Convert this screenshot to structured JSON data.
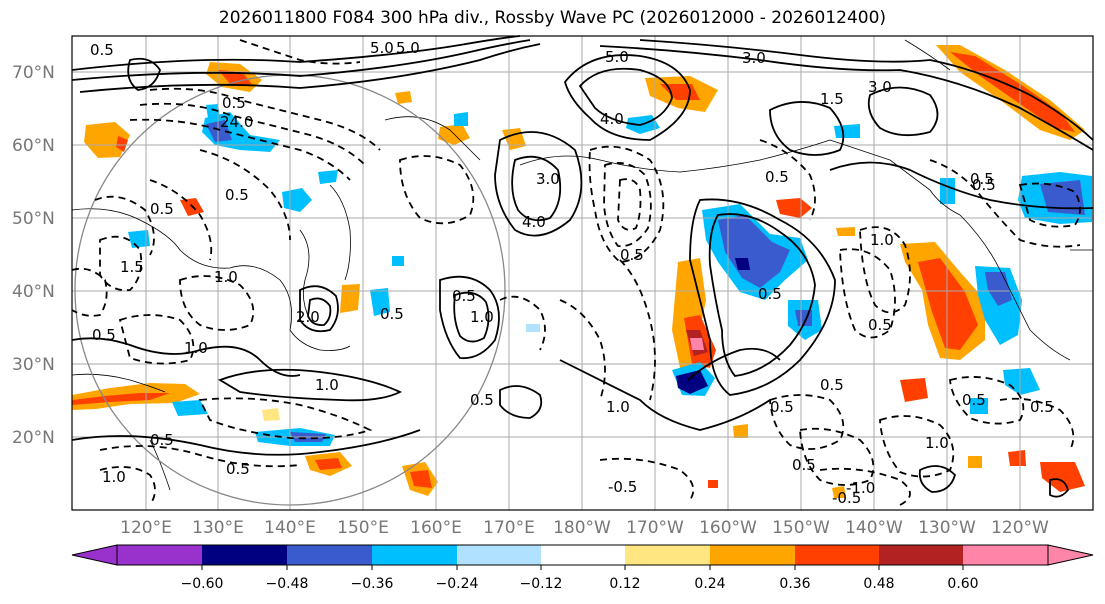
{
  "title": "2026011800 F084 300 hPa div., Rossby Wave PC (2026012000 - 2026012400)",
  "latitude_labels": [
    "70°N",
    "60°N",
    "50°N",
    "40°N",
    "30°N",
    "20°N"
  ],
  "longitude_labels": [
    "120°E",
    "130°E",
    "140°E",
    "150°E",
    "160°E",
    "170°E",
    "180°W",
    "170°W",
    "160°W",
    "150°W",
    "140°W",
    "130°W",
    "120°W"
  ],
  "contour_labels": [
    "5.0",
    "5.0",
    "3.0",
    "1.5",
    "3.0",
    "4.0",
    "24.0",
    "4.0",
    "3.0",
    "0.5",
    "0.5",
    "0.5",
    "1.0",
    "1.5",
    "0.5",
    "0.5",
    "1.0",
    "2.0",
    "1.0",
    "0.5",
    "1.0",
    "0.5",
    "0.5",
    "1.0",
    "0.5",
    "0.5",
    "0.5",
    "1.0",
    "0.5",
    "1.0",
    "0.5",
    "0.5",
    "0.5",
    "-0.5",
    "-1.0",
    "-0.5",
    "0.5",
    "0.5",
    "0.5",
    "0.5",
    "1.0",
    "0.5",
    "5.0",
    "0.5"
  ],
  "colorbar": {
    "ticks": [
      "−0.60",
      "−0.48",
      "−0.36",
      "−0.24",
      "−0.12",
      "0.12",
      "0.24",
      "0.36",
      "0.48",
      "0.60"
    ],
    "colors": [
      "#9932cc",
      "#000080",
      "#3a5bcd",
      "#00bfff",
      "#b0e2ff",
      "#ffffff",
      "#ffe680",
      "#ffa500",
      "#ff4000",
      "#b22222",
      "#ff85a8",
      "#ff85a8"
    ]
  },
  "fill_colors": {
    "orange": "#ffa500",
    "redorange": "#ff4000",
    "darkred": "#b22222",
    "pink": "#ff85a8",
    "yellow": "#ffe680",
    "lightblue": "#b0e2ff",
    "skyblue": "#00bfff",
    "royalblue": "#3a5bcd",
    "navy": "#000080"
  }
}
